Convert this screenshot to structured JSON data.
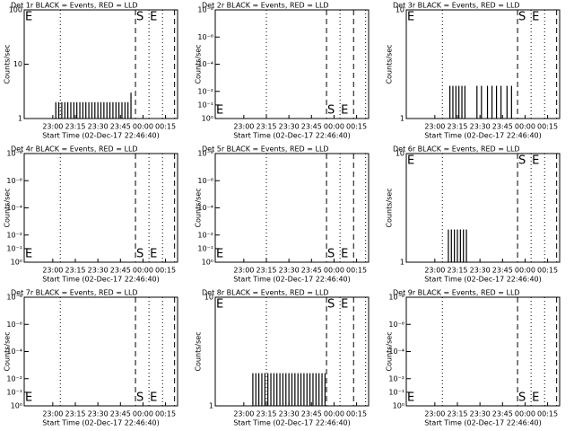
{
  "chart_data": [
    {
      "type": "bar",
      "title": "Det 1r BLACK = Events, RED = LLD",
      "ylabel": "Counts/sec",
      "xlabel": "Start Time (02-Dec-17 22:46:40)",
      "xlim": [
        "22:41",
        "00:23"
      ],
      "xticks": [
        "23:00",
        "23:15",
        "23:30",
        "23:45",
        "00:00",
        "00:15"
      ],
      "ylim": [
        1,
        100
      ],
      "yticks": [
        1,
        10,
        100
      ],
      "log_scale": true,
      "color": "#000000",
      "x": [
        "23:02",
        "23:04",
        "23:06",
        "23:08",
        "23:10",
        "23:12",
        "23:14",
        "23:16",
        "23:18",
        "23:20",
        "23:22",
        "23:24",
        "23:26",
        "23:28",
        "23:30",
        "23:32",
        "23:34",
        "23:36",
        "23:38",
        "23:40",
        "23:42",
        "23:44",
        "23:46",
        "23:48",
        "23:50",
        "23:52"
      ],
      "values": [
        2,
        2,
        2,
        2,
        2,
        2,
        2,
        2,
        2,
        2,
        2,
        2,
        2,
        2,
        2,
        2,
        2,
        2,
        2,
        2,
        2,
        2,
        2,
        2,
        2,
        3
      ],
      "markers": [
        {
          "x": "23:05",
          "style": "dotted"
        },
        {
          "x": "23:55",
          "style": "dashed"
        },
        {
          "x": "00:04",
          "style": "dotted"
        },
        {
          "x": "00:13",
          "style": "dotted"
        },
        {
          "x": "00:21",
          "style": "dashed"
        }
      ],
      "annotations": [
        {
          "text": "E",
          "x": "22:41"
        },
        {
          "text": "S",
          "x": "23:55"
        },
        {
          "text": "E",
          "x": "00:04"
        }
      ]
    },
    {
      "type": "bar",
      "title": "Det 2r BLACK = Events, RED = LLD",
      "ylabel": "Counts/sec",
      "xlabel": "Start Time (02-Dec-17 22:46:40)",
      "xlim": [
        "22:41",
        "00:23"
      ],
      "xticks": [
        "23:00",
        "23:15",
        "23:30",
        "23:45",
        "00:00",
        "00:15"
      ],
      "ylim": [
        1,
        1e-08
      ],
      "yticks": [
        {
          "value": 1,
          "label": "10⁰"
        },
        {
          "value": 0.1,
          "label": "10⁻¹"
        },
        {
          "value": 0.01,
          "label": "10⁻²"
        },
        {
          "value": 0.0001,
          "label": "10⁻⁴"
        },
        {
          "value": 1e-06,
          "label": "10⁻⁶"
        },
        {
          "value": 1e-08,
          "label": "10⁻⁸"
        }
      ],
      "log_scale": true,
      "color": "#000000",
      "x": [],
      "values": [],
      "markers": [
        {
          "x": "23:15",
          "style": "dotted"
        },
        {
          "x": "23:55",
          "style": "dashed"
        },
        {
          "x": "00:04",
          "style": "dotted"
        },
        {
          "x": "00:13",
          "style": "dashed"
        },
        {
          "x": "00:21",
          "style": "dotted"
        }
      ],
      "annotations": [
        {
          "text": "E",
          "x": "22:41"
        },
        {
          "text": "S",
          "x": "23:55"
        },
        {
          "text": "E",
          "x": "00:04"
        }
      ]
    },
    {
      "type": "bar",
      "title": "Det 3r BLACK = Events, RED = LLD",
      "ylabel": "Counts/sec",
      "xlabel": "Start Time (02-Dec-17 22:46:40)",
      "xlim": [
        "22:41",
        "00:23"
      ],
      "xticks": [
        "23:00",
        "23:15",
        "23:30",
        "23:45",
        "00:00",
        "00:15"
      ],
      "ylim": [
        1,
        10
      ],
      "yticks": [
        1,
        10
      ],
      "log_scale": true,
      "color": "#000000",
      "x": [
        "23:10",
        "23:12",
        "23:14",
        "23:16",
        "23:18",
        "23:20",
        "23:28",
        "23:31",
        "23:35",
        "23:38",
        "23:41",
        "23:44",
        "23:48",
        "23:51"
      ],
      "values": [
        2,
        2,
        2,
        2,
        2,
        2,
        2,
        2,
        2,
        2,
        2,
        2,
        2,
        2
      ],
      "markers": [
        {
          "x": "23:05",
          "style": "dotted"
        },
        {
          "x": "23:55",
          "style": "dashed"
        },
        {
          "x": "00:04",
          "style": "dotted"
        },
        {
          "x": "00:13",
          "style": "dotted"
        },
        {
          "x": "00:21",
          "style": "dashed"
        }
      ],
      "annotations": [
        {
          "text": "E",
          "x": "22:41"
        },
        {
          "text": "S",
          "x": "23:55"
        },
        {
          "text": "E",
          "x": "00:04"
        }
      ]
    },
    {
      "type": "bar",
      "title": "Det 4r BLACK = Events, RED = LLD",
      "ylabel": "Counts/sec",
      "xlabel": "Start Time (02-Dec-17 22:46:40)",
      "xlim": [
        "22:41",
        "00:23"
      ],
      "xticks": [
        "23:00",
        "23:15",
        "23:30",
        "23:45",
        "00:00",
        "00:15"
      ],
      "ylim": [
        1,
        1e-08
      ],
      "yticks": [
        {
          "value": 1,
          "label": "10⁰"
        },
        {
          "value": 0.1,
          "label": "10⁻¹"
        },
        {
          "value": 0.01,
          "label": "10⁻²"
        },
        {
          "value": 0.0001,
          "label": "10⁻⁴"
        },
        {
          "value": 1e-06,
          "label": "10⁻⁶"
        },
        {
          "value": 1e-08,
          "label": "10⁻⁸"
        }
      ],
      "log_scale": true,
      "color": "#000000",
      "x": [],
      "values": [],
      "markers": [
        {
          "x": "23:05",
          "style": "dotted"
        },
        {
          "x": "23:55",
          "style": "dashed"
        },
        {
          "x": "00:04",
          "style": "dotted"
        },
        {
          "x": "00:13",
          "style": "dotted"
        },
        {
          "x": "00:21",
          "style": "dashed"
        }
      ],
      "annotations": [
        {
          "text": "E",
          "x": "22:41"
        },
        {
          "text": "S",
          "x": "23:55"
        },
        {
          "text": "E",
          "x": "00:04"
        }
      ]
    },
    {
      "type": "bar",
      "title": "Det 5r BLACK = Events, RED = LLD",
      "ylabel": "Counts/sec",
      "xlabel": "Start Time (02-Dec-17 22:46:40)",
      "xlim": [
        "22:41",
        "00:23"
      ],
      "xticks": [
        "23:00",
        "23:15",
        "23:30",
        "23:45",
        "00:00",
        "00:15"
      ],
      "ylim": [
        1,
        1e-08
      ],
      "yticks": [
        {
          "value": 1,
          "label": "10⁰"
        },
        {
          "value": 0.1,
          "label": "10⁻¹"
        },
        {
          "value": 0.01,
          "label": "10⁻²"
        },
        {
          "value": 0.0001,
          "label": "10⁻⁴"
        },
        {
          "value": 1e-06,
          "label": "10⁻⁶"
        },
        {
          "value": 1e-08,
          "label": "10⁻⁸"
        }
      ],
      "log_scale": true,
      "color": "#000000",
      "x": [],
      "values": [],
      "markers": [
        {
          "x": "23:15",
          "style": "dotted"
        },
        {
          "x": "23:55",
          "style": "dashed"
        },
        {
          "x": "00:04",
          "style": "dotted"
        },
        {
          "x": "00:13",
          "style": "dashed"
        },
        {
          "x": "00:21",
          "style": "dotted"
        }
      ],
      "annotations": [
        {
          "text": "E",
          "x": "22:41"
        },
        {
          "text": "S",
          "x": "23:55"
        },
        {
          "text": "E",
          "x": "00:04"
        }
      ]
    },
    {
      "type": "bar",
      "title": "Det 6r BLACK = Events, RED = LLD",
      "ylabel": "Counts/sec",
      "xlabel": "Start Time (02-Dec-17 22:46:40)",
      "xlim": [
        "22:41",
        "00:23"
      ],
      "xticks": [
        "23:00",
        "23:15",
        "23:30",
        "23:45",
        "00:00",
        "00:15"
      ],
      "ylim": [
        1,
        10
      ],
      "yticks": [
        1,
        10
      ],
      "log_scale": true,
      "color": "#000000",
      "x": [
        "23:09",
        "23:11",
        "23:13",
        "23:15",
        "23:17",
        "23:19",
        "23:21"
      ],
      "values": [
        2,
        2,
        2,
        2,
        2,
        2,
        2
      ],
      "markers": [
        {
          "x": "23:05",
          "style": "dotted"
        },
        {
          "x": "23:55",
          "style": "dashed"
        },
        {
          "x": "00:04",
          "style": "dotted"
        },
        {
          "x": "00:13",
          "style": "dotted"
        },
        {
          "x": "00:21",
          "style": "dashed"
        }
      ],
      "annotations": [
        {
          "text": "E",
          "x": "22:41"
        },
        {
          "text": "S",
          "x": "23:55"
        },
        {
          "text": "E",
          "x": "00:04"
        }
      ]
    },
    {
      "type": "bar",
      "title": "Det 7r BLACK = Events, RED = LLD",
      "ylabel": "Counts/sec",
      "xlabel": "Start Time (02-Dec-17 22:46:40)",
      "xlim": [
        "22:41",
        "00:23"
      ],
      "xticks": [
        "23:00",
        "23:15",
        "23:30",
        "23:45",
        "00:00",
        "00:15"
      ],
      "ylim": [
        1,
        1e-08
      ],
      "yticks": [
        {
          "value": 1,
          "label": "10⁰"
        },
        {
          "value": 0.1,
          "label": "10⁻¹"
        },
        {
          "value": 0.01,
          "label": "10⁻²"
        },
        {
          "value": 0.0001,
          "label": "10⁻⁴"
        },
        {
          "value": 1e-06,
          "label": "10⁻⁶"
        },
        {
          "value": 1e-08,
          "label": "10⁻⁸"
        }
      ],
      "log_scale": true,
      "color": "#000000",
      "x": [],
      "values": [],
      "markers": [
        {
          "x": "23:05",
          "style": "dotted"
        },
        {
          "x": "23:55",
          "style": "dashed"
        },
        {
          "x": "00:04",
          "style": "dotted"
        },
        {
          "x": "00:13",
          "style": "dotted"
        },
        {
          "x": "00:21",
          "style": "dashed"
        }
      ],
      "annotations": [
        {
          "text": "E",
          "x": "22:41"
        },
        {
          "text": "S",
          "x": "23:55"
        },
        {
          "text": "E",
          "x": "00:04"
        }
      ]
    },
    {
      "type": "bar",
      "title": "Det 8r BLACK = Events, RED = LLD",
      "ylabel": "Counts/sec",
      "xlabel": "Start Time (02-Dec-17 22:46:40)",
      "xlim": [
        "22:41",
        "00:23"
      ],
      "xticks": [
        "23:00",
        "23:15",
        "23:30",
        "23:45",
        "00:00",
        "00:15"
      ],
      "ylim": [
        1,
        10
      ],
      "yticks": [
        1,
        10
      ],
      "log_scale": true,
      "color": "#000000",
      "x": [
        "23:06",
        "23:08",
        "23:10",
        "23:12",
        "23:14",
        "23:16",
        "23:18",
        "23:20",
        "23:22",
        "23:24",
        "23:26",
        "23:28",
        "23:30",
        "23:32",
        "23:34",
        "23:36",
        "23:38",
        "23:40",
        "23:42",
        "23:44",
        "23:46",
        "23:48",
        "23:50",
        "23:52",
        "23:54"
      ],
      "values": [
        2,
        2,
        2,
        2,
        2,
        2,
        2,
        2,
        2,
        2,
        2,
        2,
        2,
        2,
        2,
        2,
        2,
        2,
        2,
        2,
        2,
        2,
        2,
        2,
        2
      ],
      "markers": [
        {
          "x": "23:15",
          "style": "dotted"
        },
        {
          "x": "23:55",
          "style": "dashed"
        },
        {
          "x": "00:04",
          "style": "dotted"
        },
        {
          "x": "00:13",
          "style": "dashed"
        },
        {
          "x": "00:21",
          "style": "dotted"
        }
      ],
      "annotations": [
        {
          "text": "E",
          "x": "22:41"
        },
        {
          "text": "S",
          "x": "23:55"
        },
        {
          "text": "E",
          "x": "00:04"
        }
      ]
    },
    {
      "type": "bar",
      "title": "Det 9r BLACK = Events, RED = LLD",
      "ylabel": "Counts/sec",
      "xlabel": "Start Time (02-Dec-17 22:46:40)",
      "xlim": [
        "22:41",
        "00:23"
      ],
      "xticks": [
        "23:00",
        "23:15",
        "23:30",
        "23:45",
        "00:00",
        "00:15"
      ],
      "ylim": [
        1,
        1e-08
      ],
      "yticks": [
        {
          "value": 1,
          "label": "10⁰"
        },
        {
          "value": 0.1,
          "label": "10⁻¹"
        },
        {
          "value": 0.01,
          "label": "10⁻²"
        },
        {
          "value": 0.0001,
          "label": "10⁻⁴"
        },
        {
          "value": 1e-06,
          "label": "10⁻⁶"
        },
        {
          "value": 1e-08,
          "label": "10⁻⁸"
        }
      ],
      "log_scale": true,
      "color": "#000000",
      "x": [],
      "values": [],
      "markers": [
        {
          "x": "23:05",
          "style": "dotted"
        },
        {
          "x": "23:55",
          "style": "dashed"
        },
        {
          "x": "00:04",
          "style": "dotted"
        },
        {
          "x": "00:13",
          "style": "dotted"
        },
        {
          "x": "00:21",
          "style": "dashed"
        }
      ],
      "annotations": [
        {
          "text": "E",
          "x": "22:41"
        },
        {
          "text": "S",
          "x": "23:55"
        },
        {
          "text": "E",
          "x": "00:04"
        }
      ]
    }
  ]
}
